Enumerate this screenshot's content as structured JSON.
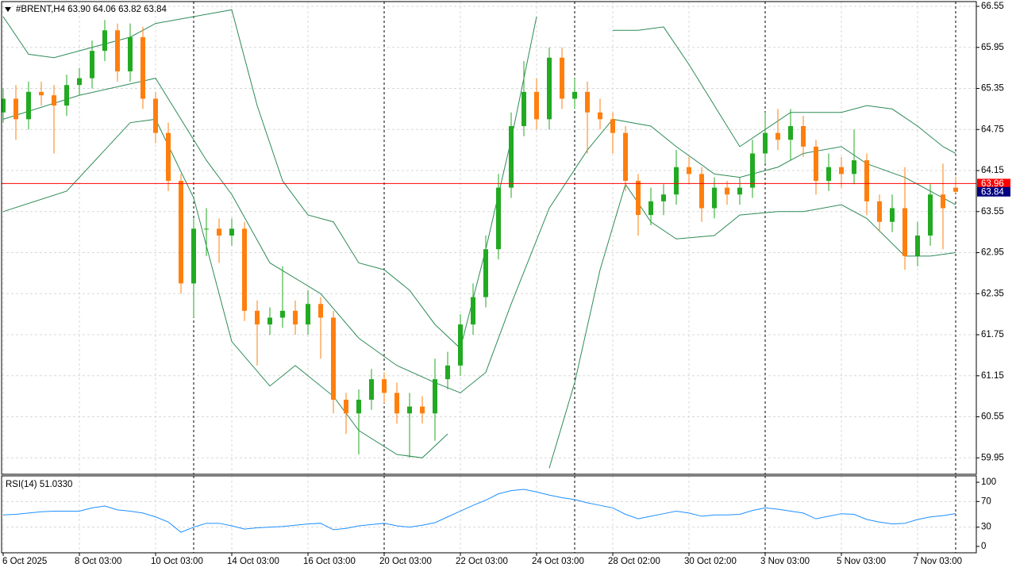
{
  "chart_data": [
    {
      "type": "candlestick",
      "title": "#BRENT,H4  63.90 64.06 63.82 63.84",
      "categories": [
        "6 Oct 2025",
        null,
        null,
        null,
        null,
        null,
        "8 Oct 03:00",
        null,
        null,
        null,
        null,
        null,
        "10 Oct 03:00",
        null,
        null,
        null,
        null,
        null,
        "14 Oct 03:00",
        null,
        null,
        null,
        null,
        null,
        "16 Oct 03:00",
        null,
        null,
        null,
        null,
        null,
        "20 Oct 03:00",
        null,
        null,
        null,
        null,
        null,
        "22 Oct 03:00",
        null,
        null,
        null,
        null,
        null,
        "24 Oct 03:00",
        null,
        null,
        null,
        null,
        null,
        "28 Oct 02:00",
        null,
        null,
        null,
        null,
        null,
        "30 Oct 02:00",
        null,
        null,
        null,
        null,
        null,
        "3 Nov 03:00",
        null,
        null,
        null,
        null,
        null,
        "5 Nov 03:00",
        null,
        null,
        null,
        null,
        null,
        "7 Nov 03:00",
        null,
        null,
        null
      ],
      "open": [
        65.0,
        65.2,
        64.9,
        65.3,
        65.25,
        65.1,
        65.4,
        65.5,
        65.9,
        66.2,
        65.6,
        66.1,
        65.2,
        64.7,
        64.0,
        62.5,
        63.3,
        63.3,
        63.2,
        63.3,
        62.1,
        61.9,
        62.0,
        62.1,
        61.9,
        62.2,
        62.0,
        60.8,
        60.6,
        60.8,
        61.1,
        60.9,
        60.6,
        60.7,
        60.6,
        61.1,
        61.3,
        61.9,
        62.3,
        63.0,
        63.9,
        64.8,
        65.3,
        64.9,
        65.8,
        65.2,
        65.3,
        65.0,
        64.9,
        64.7,
        64.0,
        63.5,
        63.7,
        63.8,
        64.2,
        64.1,
        63.6,
        63.9,
        63.8,
        63.9,
        64.4,
        64.7,
        64.6,
        64.8,
        64.5,
        64.0,
        64.2,
        64.1,
        64.3,
        63.7,
        63.4,
        63.6,
        62.9,
        63.2,
        63.8,
        63.9
      ],
      "high": [
        65.35,
        65.4,
        65.45,
        65.45,
        65.4,
        65.55,
        65.65,
        66.05,
        66.35,
        66.3,
        66.3,
        66.25,
        65.3,
        64.85,
        64.1,
        63.45,
        63.6,
        63.45,
        63.45,
        63.4,
        62.25,
        62.15,
        62.75,
        62.25,
        62.4,
        62.3,
        62.1,
        60.9,
        60.95,
        61.25,
        61.2,
        61.05,
        60.9,
        60.85,
        61.4,
        61.5,
        62.05,
        62.5,
        63.2,
        64.1,
        65.0,
        65.75,
        65.5,
        65.95,
        65.95,
        65.5,
        65.45,
        65.2,
        65.0,
        64.8,
        64.1,
        63.9,
        63.95,
        64.45,
        64.35,
        64.2,
        64.05,
        64.0,
        64.05,
        64.6,
        65.0,
        65.05,
        65.05,
        64.95,
        64.6,
        64.4,
        64.35,
        64.75,
        64.4,
        63.8,
        63.8,
        64.2,
        63.4,
        63.95,
        64.25,
        64.06
      ],
      "low": [
        64.85,
        64.6,
        64.75,
        65.1,
        64.4,
        64.95,
        65.25,
        65.35,
        65.75,
        65.45,
        65.45,
        65.05,
        64.55,
        63.85,
        62.35,
        62.0,
        62.9,
        62.8,
        63.05,
        61.95,
        61.3,
        61.75,
        61.85,
        61.75,
        61.75,
        61.4,
        60.6,
        60.3,
        60.0,
        60.65,
        60.75,
        60.45,
        59.95,
        60.45,
        60.2,
        60.95,
        61.15,
        61.75,
        62.15,
        62.85,
        63.75,
        64.65,
        64.75,
        64.75,
        65.05,
        65.05,
        64.4,
        64.75,
        64.4,
        63.85,
        63.2,
        63.35,
        63.5,
        63.65,
        63.95,
        63.4,
        63.45,
        63.65,
        63.65,
        63.75,
        64.25,
        64.45,
        64.3,
        64.35,
        63.8,
        63.85,
        63.9,
        63.95,
        63.5,
        63.25,
        63.25,
        62.7,
        62.75,
        63.05,
        63.0,
        63.82
      ],
      "close": [
        65.2,
        64.9,
        65.3,
        65.25,
        65.1,
        65.4,
        65.5,
        65.9,
        66.2,
        65.6,
        66.1,
        65.2,
        64.7,
        64.0,
        62.5,
        63.3,
        63.3,
        63.2,
        63.3,
        62.1,
        61.9,
        62.0,
        62.1,
        61.9,
        62.2,
        62.0,
        60.8,
        60.6,
        60.8,
        61.1,
        60.9,
        60.6,
        60.7,
        60.6,
        61.1,
        61.3,
        61.9,
        62.3,
        63.0,
        63.9,
        64.8,
        65.3,
        64.9,
        65.8,
        65.2,
        65.3,
        65.0,
        64.9,
        64.7,
        64.0,
        63.5,
        63.7,
        63.8,
        64.2,
        64.1,
        63.6,
        63.9,
        63.8,
        63.9,
        64.4,
        64.7,
        64.6,
        64.8,
        64.5,
        64.0,
        64.2,
        64.1,
        64.3,
        63.7,
        63.4,
        63.6,
        62.9,
        63.2,
        63.8,
        63.6,
        63.84
      ],
      "up_color": "#22aa22",
      "down_color": "#ff7f0e",
      "series": [
        {
          "color": "#2e8b57",
          "x": [
            0,
            2,
            4,
            7,
            10,
            12,
            18,
            20,
            22,
            24,
            26,
            28,
            30,
            32,
            34,
            36,
            38,
            40,
            42,
            44,
            48,
            50,
            52,
            54,
            56,
            58,
            60,
            62,
            64,
            66,
            68,
            70,
            72,
            74,
            75
          ],
          "values": [
            66.4,
            65.85,
            65.8,
            65.95,
            66.1,
            66.3,
            66.5,
            65.1,
            64.0,
            63.5,
            63.4,
            62.8,
            62.7,
            62.4,
            61.9,
            61.55,
            63.0,
            64.6,
            66.4,
            null,
            66.2,
            66.2,
            66.25,
            65.7,
            65.1,
            64.5,
            64.75,
            65.0,
            65.0,
            65.0,
            65.1,
            65.05,
            64.8,
            64.5,
            64.4
          ]
        },
        {
          "color": "#2e8b57",
          "x": [
            0,
            6,
            12,
            16,
            18,
            21,
            25,
            28,
            31,
            34,
            36,
            38,
            40,
            43,
            46,
            48,
            51,
            53,
            56,
            58,
            61,
            63,
            66,
            68,
            71,
            73,
            75
          ],
          "values": [
            64.9,
            65.25,
            65.5,
            64.3,
            63.8,
            62.8,
            62.35,
            61.7,
            61.3,
            61.05,
            60.9,
            61.2,
            62.2,
            63.6,
            64.45,
            64.9,
            64.8,
            64.5,
            64.1,
            64.05,
            64.2,
            64.4,
            64.5,
            64.25,
            64.05,
            63.85,
            63.65
          ]
        },
        {
          "color": "#2e8b57",
          "x": [
            0,
            5,
            10,
            12,
            15,
            18,
            21,
            23,
            26,
            28,
            31,
            33,
            35,
            38,
            43,
            45,
            47,
            49,
            51,
            53,
            56,
            58,
            61,
            63,
            66,
            68,
            71,
            73,
            75
          ],
          "values": [
            63.55,
            63.85,
            64.85,
            64.9,
            63.75,
            61.65,
            61.0,
            61.3,
            60.85,
            60.35,
            60.0,
            59.95,
            60.3,
            null,
            59.8,
            61.05,
            62.7,
            63.95,
            63.4,
            63.15,
            63.2,
            63.5,
            63.55,
            63.55,
            63.65,
            63.45,
            62.9,
            62.9,
            62.95
          ]
        }
      ],
      "ylim": [
        59.71,
        66.62
      ],
      "yticks": [
        66.55,
        65.95,
        65.35,
        64.75,
        64.15,
        63.55,
        62.95,
        62.35,
        61.75,
        61.15,
        60.55,
        59.95
      ],
      "grid": true,
      "period_separators": [
        15,
        30,
        45,
        60,
        75
      ],
      "price_lines": [
        {
          "value": 63.96,
          "color": "#ff0000"
        },
        {
          "value": 63.84,
          "color": "#000080"
        }
      ]
    },
    {
      "type": "line",
      "title": "RSI(14) 51.0330",
      "color": "#1e90ff",
      "values": [
        49,
        50,
        52,
        54,
        55,
        55,
        55,
        60,
        63,
        57,
        55,
        52,
        46,
        38,
        22,
        30,
        36,
        36,
        32,
        27,
        29,
        30,
        31,
        33,
        35,
        36,
        26,
        28,
        32,
        34,
        36,
        32,
        30,
        33,
        37,
        46,
        55,
        64,
        72,
        82,
        87,
        89,
        85,
        80,
        76,
        73,
        68,
        64,
        60,
        50,
        43,
        47,
        51,
        55,
        52,
        47,
        49,
        49,
        50,
        56,
        60,
        58,
        55,
        52,
        43,
        47,
        51,
        50,
        42,
        38,
        35,
        36,
        42,
        46,
        48,
        51.033
      ],
      "ylim": [
        -10,
        110
      ],
      "yticks": [
        100,
        70,
        30,
        0
      ],
      "grid": true
    }
  ]
}
